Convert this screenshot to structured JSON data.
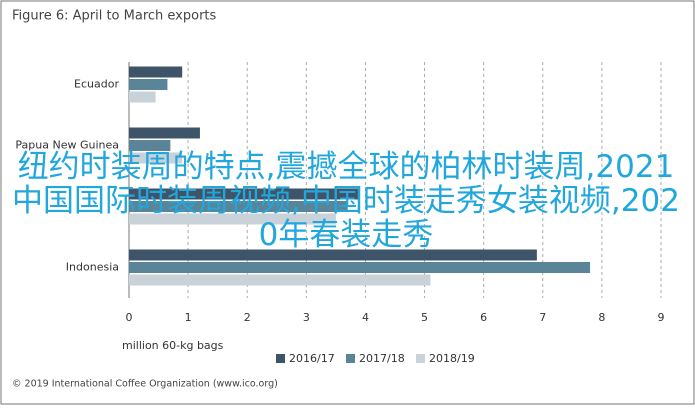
{
  "chart_data": {
    "type": "hbar",
    "title": "Figure 6: April to March exports",
    "categories": [
      "Ecuador",
      "Papua New Guinea",
      null,
      "Indonesia"
    ],
    "series": [
      {
        "name": "2016/17",
        "color": "#3e5569",
        "values": [
          0.9,
          1.2,
          3.9,
          6.9
        ]
      },
      {
        "name": "2017/18",
        "color": "#5a8598",
        "values": [
          0.65,
          0.7,
          3.7,
          7.8
        ]
      },
      {
        "name": "2018/19",
        "color": "#c9d1d9",
        "values": [
          0.45,
          0.9,
          3.5,
          5.1
        ]
      }
    ],
    "xlim": [
      0,
      9
    ],
    "xticks": [
      0,
      1,
      2,
      3,
      4,
      5,
      6,
      7,
      8,
      9
    ],
    "grid": true,
    "xlabel": "million 60-kg bags",
    "source": "© 2019 International Coffee Organization (www.ico.org)"
  },
  "overlay_text": "纽约时装周的特点,震撼全球的柏林时装周,2021中国国际时装周视频,中国时装走秀女装视频,2020年春装走秀"
}
